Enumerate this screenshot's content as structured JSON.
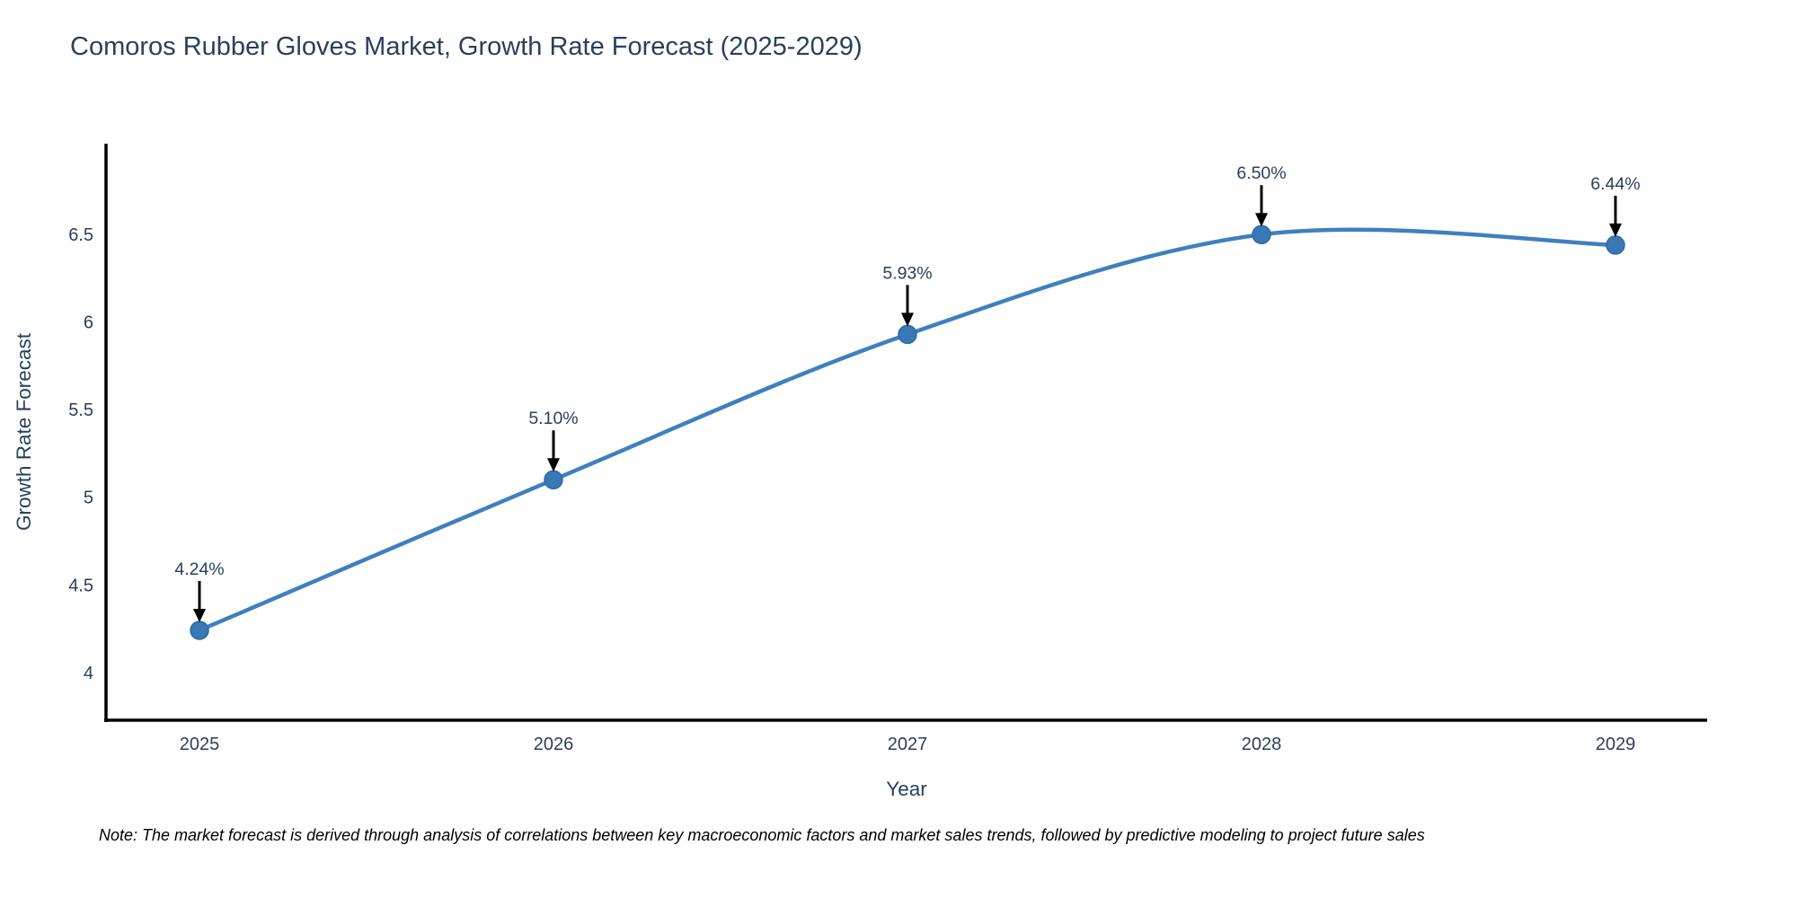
{
  "title": "Comoros Rubber Gloves Market, Growth Rate Forecast (2025-2029)",
  "note": "Note: The market forecast is derived through analysis of correlations between key macroeconomic factors and market sales trends, followed by predictive modeling to project future sales",
  "chart_data": {
    "type": "line",
    "title": "Comoros Rubber Gloves Market, Growth Rate Forecast (2025-2029)",
    "xlabel": "Year",
    "ylabel": "Growth Rate Forecast",
    "x": [
      2025,
      2026,
      2027,
      2028,
      2029
    ],
    "y": [
      4.24,
      5.1,
      5.93,
      6.5,
      6.44
    ],
    "point_labels": [
      "4.24%",
      "5.10%",
      "5.93%",
      "6.50%",
      "6.44%"
    ],
    "xtick_labels": [
      "2025",
      "2026",
      "2027",
      "2028",
      "2029"
    ],
    "ytick_values": [
      4,
      4.5,
      5,
      5.5,
      6,
      6.5
    ],
    "ytick_labels": [
      "4",
      "4.5",
      "5",
      "5.5",
      "6",
      "6.5"
    ],
    "xlim": [
      2024.736,
      2029.259
    ],
    "ylim": [
      3.727,
      7.019
    ],
    "grid": false,
    "line_shape": "spline",
    "legend": "none",
    "colors": {
      "line": "#3e80bf",
      "marker": "#3778b5",
      "marker_edge": "#2f6aa3",
      "axis": "#000000",
      "text": "#2a3f5f",
      "annotation_text": "#2a3f5f",
      "annotation_arrow": "#000000",
      "note_text": "#000000",
      "background": "#ffffff"
    }
  }
}
